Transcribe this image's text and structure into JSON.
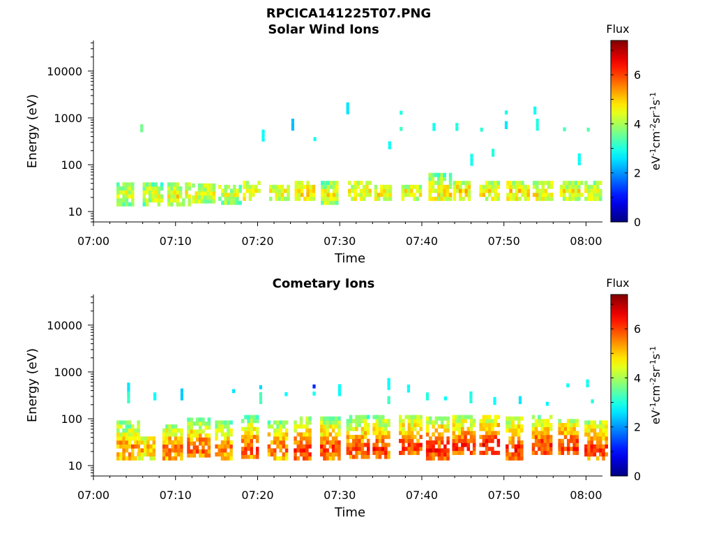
{
  "figure_title": "RPCICA141225T07.PNG",
  "chart_data": [
    {
      "type": "heatmap",
      "title": "Solar Wind Ions",
      "xlabel": "Time",
      "ylabel": "Energy (eV)",
      "x_ticks": [
        "07:00",
        "07:10",
        "07:20",
        "07:30",
        "07:40",
        "07:50",
        "08:00"
      ],
      "x_range_minutes": [
        0,
        62
      ],
      "y_scale": "log",
      "y_range": [
        6,
        45000
      ],
      "y_ticks": [
        10,
        100,
        1000,
        10000
      ],
      "y_tick_labels": [
        "10",
        "100",
        "1000",
        "10000"
      ],
      "colorbar": {
        "label": "Flux",
        "units": "eV-1cm-2sr-1s-1",
        "range": [
          0,
          7.4
        ],
        "ticks": [
          "0",
          "2",
          "4",
          "6"
        ],
        "colormap": "jet"
      },
      "bursts": [
        {
          "start_min": 2.8,
          "low_keV_band": [
            13,
            35
          ],
          "peak_flux": 5.1
        },
        {
          "start_min": 6.0,
          "low_keV_band": [
            13,
            38
          ],
          "peak_flux": 5.0
        },
        {
          "start_min": 9.0,
          "low_keV_band": [
            13,
            38
          ],
          "peak_flux": 5.3
        },
        {
          "start_min": 12.0,
          "low_keV_band": [
            15,
            36
          ],
          "peak_flux": 5.2
        },
        {
          "start_min": 15.2,
          "low_keV_band": [
            14,
            36
          ],
          "peak_flux": 5.0
        },
        {
          "start_min": 18.2,
          "low_keV_band": [
            17,
            38
          ],
          "peak_flux": 5.4
        },
        {
          "start_min": 21.4,
          "low_keV_band": [
            17,
            37
          ],
          "peak_flux": 5.3
        },
        {
          "start_min": 24.5,
          "low_keV_band": [
            17,
            45
          ],
          "peak_flux": 5.5
        },
        {
          "start_min": 27.7,
          "low_keV_band": [
            14,
            38
          ],
          "peak_flux": 5.2
        },
        {
          "start_min": 31.0,
          "low_keV_band": [
            17,
            40
          ],
          "peak_flux": 5.4
        },
        {
          "start_min": 34.2,
          "low_keV_band": [
            17,
            36
          ],
          "peak_flux": 5.3
        },
        {
          "start_min": 37.5,
          "low_keV_band": [
            17,
            36
          ],
          "peak_flux": 5.2
        },
        {
          "start_min": 40.8,
          "low_keV_band": [
            17,
            65
          ],
          "peak_flux": 5.4
        },
        {
          "start_min": 43.8,
          "low_keV_band": [
            17,
            40
          ],
          "peak_flux": 5.5
        },
        {
          "start_min": 47.0,
          "low_keV_band": [
            17,
            40
          ],
          "peak_flux": 5.4
        },
        {
          "start_min": 50.3,
          "low_keV_band": [
            17,
            40
          ],
          "peak_flux": 5.5
        },
        {
          "start_min": 53.5,
          "low_keV_band": [
            17,
            40
          ],
          "peak_flux": 5.4
        },
        {
          "start_min": 56.8,
          "low_keV_band": [
            17,
            40
          ],
          "peak_flux": 5.3
        },
        {
          "start_min": 59.8,
          "low_keV_band": [
            17,
            42
          ],
          "peak_flux": 5.2
        }
      ],
      "sparse_points": [
        {
          "t": 5.7,
          "e": 600,
          "flux": 3.6
        },
        {
          "t": 20.5,
          "e": 380,
          "flux": 2.8
        },
        {
          "t": 24.1,
          "e": 650,
          "flux": 2.3
        },
        {
          "t": 26.8,
          "e": 390,
          "flux": 2.9
        },
        {
          "t": 30.8,
          "e": 1450,
          "flux": 2.6
        },
        {
          "t": 35.9,
          "e": 260,
          "flux": 2.8
        },
        {
          "t": 37.3,
          "e": 1420,
          "flux": 3.0
        },
        {
          "t": 37.3,
          "e": 640,
          "flux": 3.2
        },
        {
          "t": 41.3,
          "e": 640,
          "flux": 2.9
        },
        {
          "t": 44.1,
          "e": 640,
          "flux": 3.0
        },
        {
          "t": 47.1,
          "e": 620,
          "flux": 3.1
        },
        {
          "t": 48.5,
          "e": 180,
          "flux": 3.0
        },
        {
          "t": 50.1,
          "e": 700,
          "flux": 2.6
        },
        {
          "t": 50.1,
          "e": 1440,
          "flux": 2.9
        },
        {
          "t": 53.6,
          "e": 1440,
          "flux": 2.9
        },
        {
          "t": 53.9,
          "e": 650,
          "flux": 3.0
        },
        {
          "t": 57.2,
          "e": 630,
          "flux": 3.3
        },
        {
          "t": 60.1,
          "e": 620,
          "flux": 3.4
        },
        {
          "t": 45.9,
          "e": 115,
          "flux": 2.9
        },
        {
          "t": 59.0,
          "e": 118,
          "flux": 2.8
        }
      ]
    },
    {
      "type": "heatmap",
      "title": "Cometary Ions",
      "xlabel": "Time",
      "ylabel": "Energy (eV)",
      "x_ticks": [
        "07:00",
        "07:10",
        "07:20",
        "07:30",
        "07:40",
        "07:50",
        "08:00"
      ],
      "x_range_minutes": [
        0,
        62
      ],
      "y_scale": "log",
      "y_range": [
        6,
        45000
      ],
      "y_ticks": [
        10,
        100,
        1000,
        10000
      ],
      "y_tick_labels": [
        "10",
        "100",
        "1000",
        "10000"
      ],
      "colorbar": {
        "label": "Flux",
        "units": "eV-1cm-2sr-1s-1",
        "range": [
          0,
          7.4
        ],
        "ticks": [
          "0",
          "2",
          "4",
          "6"
        ],
        "colormap": "jet"
      },
      "bursts": [
        {
          "start_min": 2.8,
          "low_keV_band": [
            13,
            90
          ],
          "peak_flux": 6.2
        },
        {
          "start_min": 5.4,
          "low_keV_band": [
            13,
            40
          ],
          "peak_flux": 5.8
        },
        {
          "start_min": 8.4,
          "low_keV_band": [
            13,
            65
          ],
          "peak_flux": 6.4
        },
        {
          "start_min": 11.4,
          "low_keV_band": [
            15,
            90
          ],
          "peak_flux": 6.5
        },
        {
          "start_min": 14.8,
          "low_keV_band": [
            13,
            90
          ],
          "peak_flux": 6.3
        },
        {
          "start_min": 18.0,
          "low_keV_band": [
            14,
            100
          ],
          "peak_flux": 6.6
        },
        {
          "start_min": 21.2,
          "low_keV_band": [
            13,
            90
          ],
          "peak_flux": 6.4
        },
        {
          "start_min": 24.4,
          "low_keV_band": [
            13,
            95
          ],
          "peak_flux": 6.8
        },
        {
          "start_min": 27.6,
          "low_keV_band": [
            13,
            95
          ],
          "peak_flux": 6.7
        },
        {
          "start_min": 30.8,
          "low_keV_band": [
            14,
            100
          ],
          "peak_flux": 6.6
        },
        {
          "start_min": 34.0,
          "low_keV_band": [
            14,
            100
          ],
          "peak_flux": 6.7
        },
        {
          "start_min": 37.2,
          "low_keV_band": [
            17,
            110
          ],
          "peak_flux": 6.7
        },
        {
          "start_min": 40.5,
          "low_keV_band": [
            13,
            110
          ],
          "peak_flux": 6.9
        },
        {
          "start_min": 43.7,
          "low_keV_band": [
            17,
            110
          ],
          "peak_flux": 6.8
        },
        {
          "start_min": 47.0,
          "low_keV_band": [
            17,
            110
          ],
          "peak_flux": 7.0
        },
        {
          "start_min": 50.2,
          "low_keV_band": [
            13,
            110
          ],
          "peak_flux": 6.9
        },
        {
          "start_min": 53.4,
          "low_keV_band": [
            17,
            100
          ],
          "peak_flux": 6.8
        },
        {
          "start_min": 56.6,
          "low_keV_band": [
            17,
            90
          ],
          "peak_flux": 6.8
        },
        {
          "start_min": 59.8,
          "low_keV_band": [
            13,
            90
          ],
          "peak_flux": 6.7
        }
      ],
      "sparse_points": [
        {
          "t": 4.1,
          "e": 400,
          "flux": 2.6
        },
        {
          "t": 4.1,
          "e": 260,
          "flux": 3.2
        },
        {
          "t": 7.3,
          "e": 300,
          "flux": 2.8
        },
        {
          "t": 10.6,
          "e": 300,
          "flux": 2.4
        },
        {
          "t": 16.9,
          "e": 430,
          "flux": 2.6
        },
        {
          "t": 20.2,
          "e": 520,
          "flux": 2.5
        },
        {
          "t": 20.2,
          "e": 250,
          "flux": 3.3
        },
        {
          "t": 23.3,
          "e": 370,
          "flux": 2.8
        },
        {
          "t": 26.7,
          "e": 540,
          "flux": 1.2
        },
        {
          "t": 26.7,
          "e": 380,
          "flux": 2.9
        },
        {
          "t": 29.8,
          "e": 370,
          "flux": 2.8
        },
        {
          "t": 35.8,
          "e": 500,
          "flux": 2.8
        },
        {
          "t": 35.8,
          "e": 250,
          "flux": 3.2
        },
        {
          "t": 38.2,
          "e": 440,
          "flux": 2.8
        },
        {
          "t": 40.5,
          "e": 300,
          "flux": 3.0
        },
        {
          "t": 42.7,
          "e": 300,
          "flux": 2.8
        },
        {
          "t": 45.8,
          "e": 260,
          "flux": 3.0
        },
        {
          "t": 48.7,
          "e": 240,
          "flux": 2.8
        },
        {
          "t": 51.8,
          "e": 250,
          "flux": 2.6
        },
        {
          "t": 55.1,
          "e": 230,
          "flux": 2.7
        },
        {
          "t": 57.6,
          "e": 570,
          "flux": 2.9
        },
        {
          "t": 60.0,
          "e": 570,
          "flux": 2.9
        },
        {
          "t": 60.6,
          "e": 260,
          "flux": 3.0
        }
      ]
    }
  ]
}
